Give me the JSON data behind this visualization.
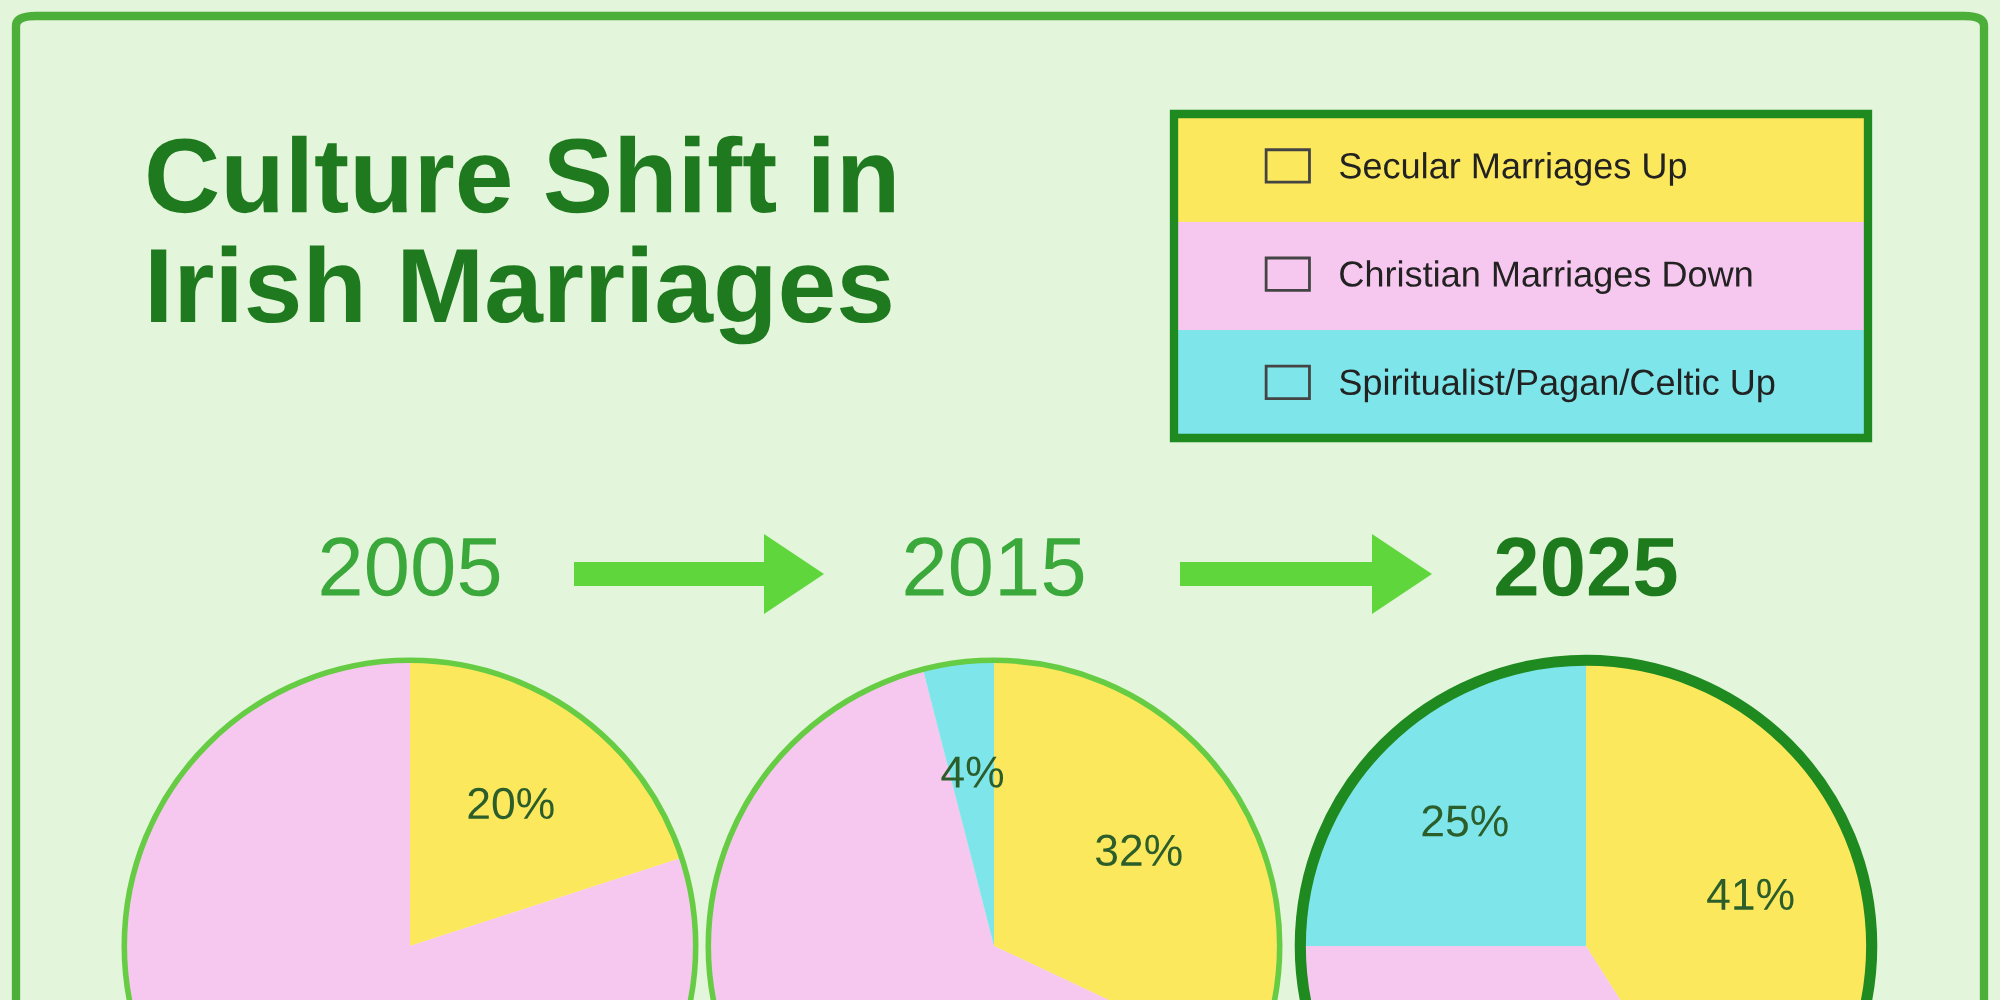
{
  "chart_data": [
    {
      "type": "pie",
      "title": "2005",
      "annotations": [
        "Culture Shift in\nIrish Marriages"
      ],
      "categories": [
        null,
        null
      ],
      "values": [
        20,
        80
      ],
      "colors": [
        "#fce85c",
        "#f7c8ef"
      ],
      "value_labels": [
        "20%",
        null
      ]
    },
    {
      "type": "pie",
      "title": "2015",
      "categories": [
        null,
        null,
        null
      ],
      "values": [
        32,
        64,
        4
      ],
      "colors": [
        "#fce85c",
        "#f7c8ef",
        "#7ee6ea"
      ],
      "value_labels": [
        "32%",
        null,
        "4%"
      ]
    },
    {
      "type": "pie",
      "title": "2025",
      "categories": [
        "Secular Marriages Up",
        "Christian Marriages Down",
        "Spiritualist/Pagan/Celtic Up"
      ],
      "values": [
        41,
        34,
        25
      ],
      "colors": [
        "#fce85c",
        "#f7c8ef",
        "#7ee6ea"
      ],
      "value_labels": [
        "41%",
        null,
        "25%"
      ],
      "legend": "top"
    }
  ]
}
